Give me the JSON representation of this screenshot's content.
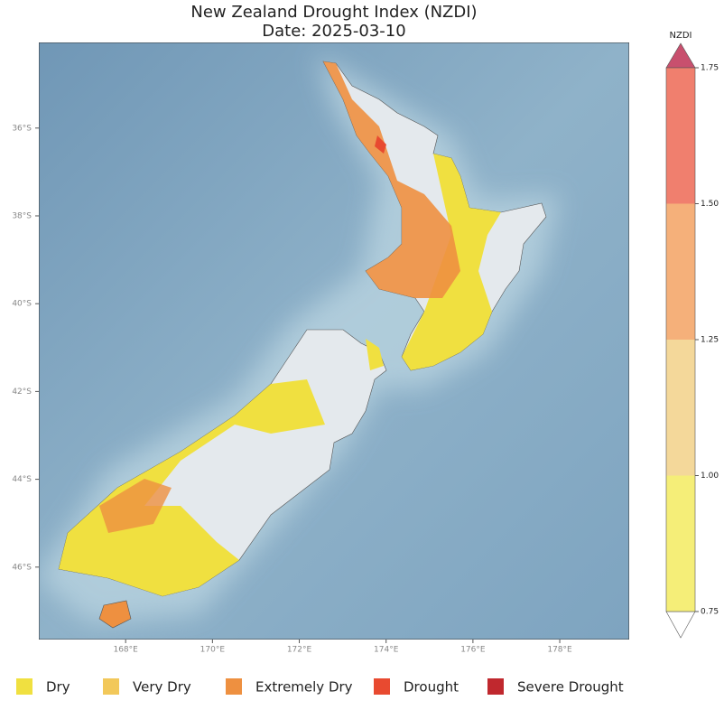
{
  "chart_data": {
    "type": "map",
    "title": "New Zealand Drought Index (NZDI)",
    "subtitle": "Date: 2025-03-10",
    "xlim": [
      166,
      179.6
    ],
    "ylim": [
      -47.65,
      -34.05
    ],
    "xticks": [
      {
        "value": 168,
        "label": "168°E"
      },
      {
        "value": 170,
        "label": "170°E"
      },
      {
        "value": 172,
        "label": "172°E"
      },
      {
        "value": 174,
        "label": "174°E"
      },
      {
        "value": 176,
        "label": "176°E"
      },
      {
        "value": 178,
        "label": "178°E"
      }
    ],
    "yticks": [
      {
        "value": -36,
        "label": "36°S"
      },
      {
        "value": -38,
        "label": "38°S"
      },
      {
        "value": -40,
        "label": "40°S"
      },
      {
        "value": -42,
        "label": "42°S"
      },
      {
        "value": -44,
        "label": "44°S"
      },
      {
        "value": -46,
        "label": "46°S"
      }
    ],
    "colorbar": {
      "label": "NZDI",
      "lim": [
        0.75,
        1.75
      ],
      "ticks": [
        0.75,
        {
          "value": 1,
          "label": "1.00"
        },
        1.25,
        {
          "value": 1.5,
          "label": "1.50"
        },
        1.75
      ],
      "colors": [
        "#f5ee78",
        "#f4d89a",
        "#f5b07a",
        "#f07f6e"
      ]
    },
    "legend": [
      {
        "name": "Dry",
        "color": "#f0e040"
      },
      {
        "name": "Very Dry",
        "color": "#f2c85a"
      },
      {
        "name": "Extremely Dry",
        "color": "#ee9040"
      },
      {
        "name": "Drought",
        "color": "#e84a30"
      },
      {
        "name": "Severe Drought",
        "color": "#c0282e"
      }
    ]
  }
}
